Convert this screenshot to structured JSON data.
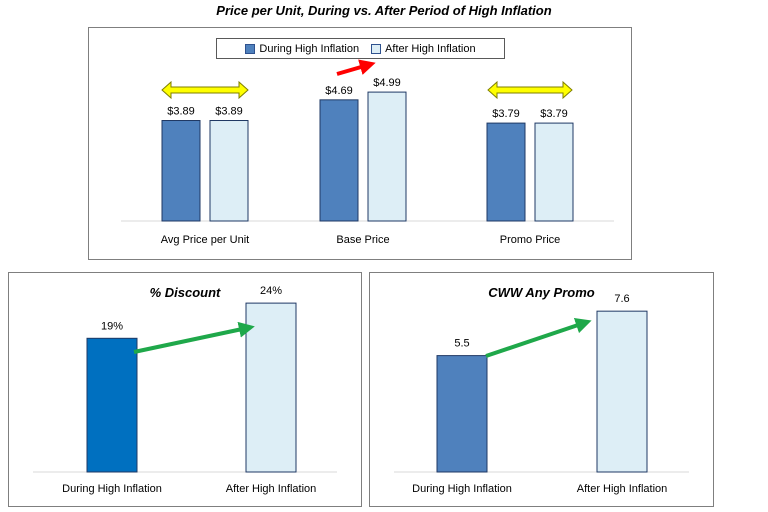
{
  "page_title": "Price per Unit, During vs. After Period of High Inflation",
  "colors": {
    "during": "#4f81bd",
    "during_discount": "#0070c0",
    "after": "#ddeef6",
    "bar_border": "#1f3864",
    "yellow_arrow": "#ffff00",
    "red_arrow": "#ff0000",
    "green_arrow": "#1fa84a"
  },
  "legend": {
    "during": "During High Inflation",
    "after": "After High Inflation"
  },
  "chart_data": [
    {
      "type": "bar",
      "title": "",
      "categories": [
        "Avg Price per Unit",
        "Base Price",
        "Promo Price"
      ],
      "series": [
        {
          "name": "During High Inflation",
          "values": [
            3.89,
            4.69,
            3.79
          ],
          "labels": [
            "$3.89",
            "$4.69",
            "$3.79"
          ]
        },
        {
          "name": "After High Inflation",
          "values": [
            3.89,
            4.99,
            3.79
          ],
          "labels": [
            "$3.89",
            "$4.99",
            "$3.79"
          ]
        }
      ],
      "ylim": [
        0,
        6
      ],
      "legend_position": "top-center",
      "annotations": [
        "yellow-double-arrow",
        "red-arrow-up",
        "yellow-double-arrow"
      ]
    },
    {
      "type": "bar",
      "title": "% Discount",
      "categories": [
        "During High Inflation",
        "After High Inflation"
      ],
      "values": [
        19,
        24
      ],
      "labels": [
        "19%",
        "24%"
      ],
      "ylim": [
        0,
        27
      ],
      "annotations": [
        "green-arrow-up"
      ]
    },
    {
      "type": "bar",
      "title": "CWW Any Promo",
      "categories": [
        "During High Inflation",
        "After High Inflation"
      ],
      "values": [
        5.5,
        7.6
      ],
      "labels": [
        "5.5",
        "7.6"
      ],
      "ylim": [
        0,
        8.6
      ],
      "annotations": [
        "green-arrow-up"
      ]
    }
  ]
}
